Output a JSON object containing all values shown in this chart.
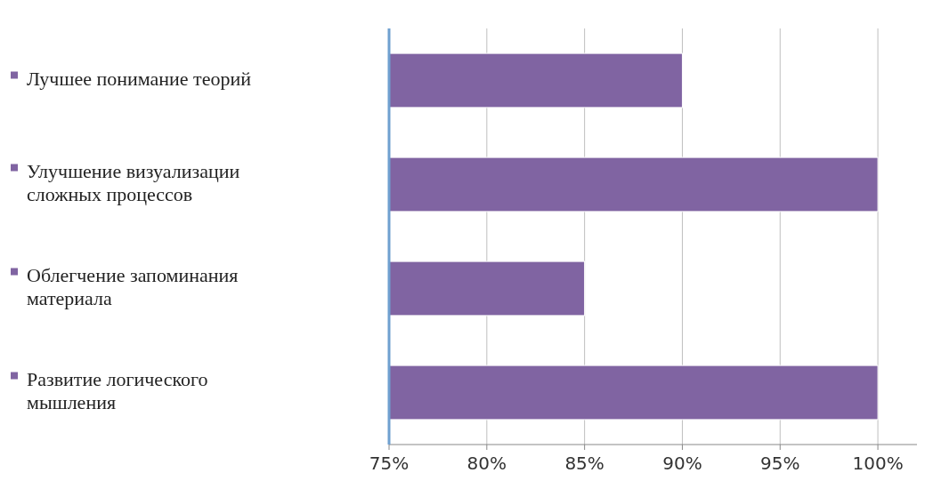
{
  "chart_data": {
    "type": "bar",
    "orientation": "horizontal",
    "categories": [
      "Лучшее понимание теорий",
      "Улучшение визуализации сложных процессов",
      "Облегчение запоминания материала",
      "Развитие логического мышления"
    ],
    "values": [
      90,
      100,
      85,
      100
    ],
    "color": "#8064a2",
    "xlim": [
      75,
      102
    ],
    "xticks": [
      {
        "value": 75,
        "label": "75%"
      },
      {
        "value": 80,
        "label": "80%"
      },
      {
        "value": 85,
        "label": "85%"
      },
      {
        "value": 90,
        "label": "90%"
      },
      {
        "value": 95,
        "label": "95%"
      },
      {
        "value": 100,
        "label": "100%"
      }
    ],
    "grid": "x"
  }
}
